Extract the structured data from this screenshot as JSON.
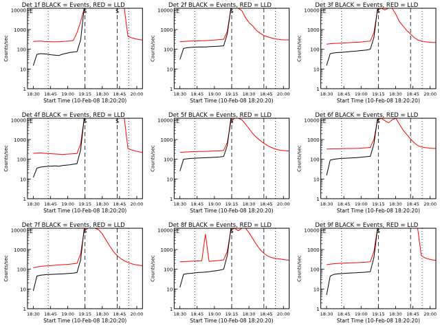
{
  "colors": {
    "events": "#000000",
    "lld": "#ff0000",
    "axis": "#000000"
  },
  "chart_data": [
    {
      "type": "line",
      "title": "Det 1f BLACK = Events, RED = LLD",
      "xlabel": "Start Time (10-Feb-08 18:20:20)",
      "ylabel": "Counts/sec",
      "yscale": "log",
      "ylim": [
        1,
        12000
      ],
      "yticks": [
        "1",
        "10",
        "100",
        "1000",
        "10000"
      ],
      "xticks": [
        "18:30",
        "18:45",
        "19:00",
        "19:15",
        "18:30",
        "18:45",
        "20:00"
      ],
      "annotations": [
        "E",
        "S",
        "S"
      ],
      "series": [
        {
          "values": [
            250,
            255,
            260,
            250,
            245,
            240,
            238,
            240,
            250,
            255,
            262,
            280,
            700,
            2500,
            12000,
            12000,
            12000,
            12000,
            12000,
            12000,
            12000,
            12000,
            12000,
            12000,
            12000,
            12000,
            450,
            380,
            340,
            310,
            290
          ]
        },
        {
          "values": [
            15,
            55,
            60,
            58,
            56,
            52,
            50,
            48,
            56,
            62,
            68,
            72,
            75,
            300,
            12000,
            12000,
            12000,
            12000,
            12000,
            12000,
            12000,
            12000,
            12000,
            12000,
            12000,
            12000,
            12000,
            12000,
            12000,
            12000,
            12000
          ]
        }
      ]
    },
    {
      "type": "line",
      "title": "Det 2f BLACK = Events, RED = LLD",
      "xlabel": "Start Time (10-Feb-08 18:20:20)",
      "ylabel": "Counts/sec",
      "yscale": "log",
      "ylim": [
        1,
        12000
      ],
      "yticks": [
        "1",
        "10",
        "100",
        "1000",
        "10000"
      ],
      "xticks": [
        "18:30",
        "18:45",
        "19:00",
        "19:15",
        "18:30",
        "18:45",
        "20:00"
      ],
      "annotations": [
        "E",
        "S"
      ],
      "series": [
        {
          "values": [
            240,
            250,
            255,
            260,
            262,
            265,
            270,
            275,
            280,
            290,
            300,
            310,
            320,
            800,
            12000,
            12000,
            12000,
            9000,
            4000,
            2200,
            1500,
            900,
            650,
            500,
            430,
            380,
            340,
            320,
            300,
            300,
            300
          ]
        },
        {
          "values": [
            30,
            110,
            120,
            125,
            128,
            130,
            132,
            130,
            135,
            138,
            140,
            145,
            150,
            600,
            12000,
            12000,
            12000,
            12000,
            12000,
            12000,
            12000,
            12000,
            12000,
            12000,
            12000,
            12000,
            12000,
            12000,
            12000,
            12000,
            12000
          ]
        }
      ]
    },
    {
      "type": "line",
      "title": "Det 3f BLACK = Events, RED = LLD",
      "xlabel": "Start Time (10-Feb-08 18:20:20)",
      "ylabel": "Counts/sec",
      "yscale": "log",
      "ylim": [
        1,
        12000
      ],
      "yticks": [
        "1",
        "10",
        "100",
        "1000",
        "10000"
      ],
      "xticks": [
        "18:30",
        "18:45",
        "19:00",
        "19:15",
        "18:30",
        "18:45",
        "20:00"
      ],
      "annotations": [
        "E",
        "S"
      ],
      "series": [
        {
          "values": [
            180,
            190,
            195,
            200,
            205,
            210,
            215,
            220,
            225,
            230,
            240,
            250,
            260,
            700,
            10000,
            12000,
            10000,
            12000,
            12000,
            6000,
            2500,
            1500,
            900,
            600,
            400,
            300,
            260,
            240,
            230,
            220,
            220
          ]
        },
        {
          "values": [
            15,
            60,
            65,
            68,
            70,
            72,
            75,
            78,
            80,
            84,
            88,
            92,
            100,
            400,
            12000,
            12000,
            12000,
            12000,
            12000,
            12000,
            12000,
            12000,
            12000,
            12000,
            12000,
            12000,
            12000,
            12000,
            12000,
            12000,
            12000
          ]
        }
      ]
    },
    {
      "type": "line",
      "title": "Det 4f BLACK = Events, RED = LLD",
      "xlabel": "Start Time (10-Feb-08 18:20:20)",
      "ylabel": "Counts/sec",
      "yscale": "log",
      "ylim": [
        1,
        12000
      ],
      "yticks": [
        "1",
        "10",
        "100",
        "1000",
        "10000"
      ],
      "xticks": [
        "18:30",
        "18:45",
        "19:00",
        "19:15",
        "18:30",
        "18:45",
        "20:00"
      ],
      "annotations": [
        "E",
        "S",
        "S"
      ],
      "series": [
        {
          "values": [
            200,
            205,
            210,
            200,
            195,
            190,
            185,
            180,
            175,
            180,
            185,
            190,
            195,
            600,
            12000,
            12000,
            12000,
            12000,
            12000,
            12000,
            12000,
            12000,
            12000,
            12000,
            12000,
            12000,
            350,
            300,
            260,
            240,
            220
          ]
        },
        {
          "values": [
            12,
            35,
            40,
            42,
            44,
            45,
            46,
            44,
            48,
            50,
            52,
            56,
            60,
            300,
            12000,
            12000,
            12000,
            12000,
            12000,
            12000,
            12000,
            12000,
            12000,
            12000,
            12000,
            12000,
            12000,
            12000,
            12000,
            12000,
            12000
          ]
        }
      ]
    },
    {
      "type": "line",
      "title": "Det 5f BLACK = Events, RED = LLD",
      "xlabel": "Start Time (10-Feb-08 18:20:20)",
      "ylabel": "Counts/sec",
      "yscale": "log",
      "ylim": [
        1,
        12000
      ],
      "yticks": [
        "1",
        "10",
        "100",
        "1000",
        "10000"
      ],
      "xticks": [
        "18:30",
        "18:45",
        "19:00",
        "19:15",
        "18:30",
        "18:45",
        "20:00"
      ],
      "annotations": [
        "E",
        "S"
      ],
      "series": [
        {
          "values": [
            220,
            230,
            235,
            240,
            245,
            248,
            250,
            252,
            255,
            258,
            262,
            268,
            280,
            700,
            8000,
            12000,
            12000,
            10000,
            6000,
            3500,
            2000,
            1300,
            900,
            650,
            500,
            400,
            340,
            300,
            280,
            270,
            260
          ]
        },
        {
          "values": [
            25,
            100,
            105,
            110,
            112,
            115,
            118,
            120,
            122,
            125,
            128,
            132,
            138,
            500,
            12000,
            12000,
            12000,
            12000,
            12000,
            12000,
            12000,
            12000,
            12000,
            12000,
            12000,
            12000,
            12000,
            12000,
            12000,
            12000,
            12000
          ]
        }
      ]
    },
    {
      "type": "line",
      "title": "Det 6f BLACK = Events, RED = LLD",
      "xlabel": "Start Time (10-Feb-08 18:20:20)",
      "ylabel": "Counts/sec",
      "yscale": "log",
      "ylim": [
        1,
        12000
      ],
      "yticks": [
        "1",
        "10",
        "100",
        "1000",
        "10000"
      ],
      "xticks": [
        "18:30",
        "18:45",
        "19:00",
        "19:15",
        "18:30",
        "18:45",
        "20:00"
      ],
      "annotations": [
        "E",
        "S"
      ],
      "series": [
        {
          "values": [
            330,
            335,
            340,
            340,
            345,
            348,
            350,
            352,
            355,
            360,
            370,
            380,
            400,
            1000,
            10000,
            12000,
            9000,
            7000,
            10000,
            12000,
            6000,
            3000,
            1800,
            1100,
            700,
            500,
            420,
            390,
            370,
            360,
            350
          ]
        },
        {
          "values": [
            15,
            90,
            100,
            105,
            110,
            112,
            115,
            118,
            120,
            125,
            130,
            135,
            140,
            600,
            12000,
            12000,
            12000,
            12000,
            12000,
            12000,
            12000,
            12000,
            12000,
            12000,
            12000,
            12000,
            12000,
            12000,
            12000,
            12000,
            12000
          ]
        }
      ]
    },
    {
      "type": "line",
      "title": "Det 7f BLACK = Events, RED = LLD",
      "xlabel": "Start Time (10-Feb-08 18:20:20)",
      "ylabel": "Counts/sec",
      "yscale": "log",
      "ylim": [
        1,
        12000
      ],
      "yticks": [
        "1",
        "10",
        "100",
        "1000",
        "10000"
      ],
      "xticks": [
        "18:30",
        "18:45",
        "19:00",
        "19:15",
        "18:30",
        "18:45",
        "20:00"
      ],
      "annotations": [
        "E",
        "S"
      ],
      "series": [
        {
          "values": [
            120,
            130,
            140,
            145,
            150,
            155,
            160,
            165,
            170,
            175,
            180,
            190,
            200,
            600,
            9000,
            12000,
            12000,
            12000,
            10000,
            6000,
            3000,
            1500,
            800,
            500,
            350,
            270,
            220,
            190,
            170,
            160,
            150
          ]
        },
        {
          "values": [
            8,
            45,
            50,
            52,
            54,
            55,
            56,
            57,
            58,
            60,
            62,
            64,
            68,
            300,
            12000,
            12000,
            12000,
            12000,
            12000,
            12000,
            12000,
            12000,
            12000,
            12000,
            12000,
            12000,
            12000,
            12000,
            12000,
            12000,
            12000
          ]
        }
      ]
    },
    {
      "type": "line",
      "title": "Det 8f BLACK = Events, RED = LLD",
      "xlabel": "Start Time (10-Feb-08 18:20:20)",
      "ylabel": "Counts/sec",
      "yscale": "log",
      "ylim": [
        1,
        12000
      ],
      "yticks": [
        "1",
        "10",
        "100",
        "1000",
        "10000"
      ],
      "xticks": [
        "18:30",
        "18:45",
        "19:00",
        "19:15",
        "18:30",
        "18:45",
        "20:00"
      ],
      "annotations": [
        "E",
        "S"
      ],
      "series": [
        {
          "values": [
            240,
            245,
            250,
            255,
            260,
            265,
            270,
            6000,
            250,
            260,
            270,
            280,
            300,
            800,
            10000,
            12000,
            9000,
            12000,
            12000,
            7000,
            3500,
            1800,
            1000,
            650,
            480,
            400,
            360,
            340,
            320,
            300,
            290
          ]
        },
        {
          "values": [
            12,
            55,
            60,
            62,
            65,
            68,
            70,
            72,
            75,
            80,
            85,
            90,
            100,
            500,
            12000,
            12000,
            12000,
            12000,
            12000,
            12000,
            12000,
            12000,
            12000,
            12000,
            12000,
            12000,
            12000,
            12000,
            12000,
            12000,
            12000
          ]
        }
      ]
    },
    {
      "type": "line",
      "title": "Det 9f BLACK = Events, RED = LLD",
      "xlabel": "Start Time (10-Feb-08 18:20:20)",
      "ylabel": "Counts/sec",
      "yscale": "log",
      "ylim": [
        1,
        12000
      ],
      "yticks": [
        "1",
        "10",
        "100",
        "1000",
        "10000"
      ],
      "xticks": [
        "18:30",
        "18:45",
        "19:00",
        "19:15",
        "18:30",
        "18:45",
        "20:00"
      ],
      "annotations": [
        "E",
        "S"
      ],
      "series": [
        {
          "values": [
            170,
            180,
            190,
            195,
            200,
            205,
            210,
            212,
            215,
            220,
            225,
            230,
            240,
            800,
            12000,
            12000,
            12000,
            12000,
            12000,
            12000,
            12000,
            12000,
            12000,
            12000,
            12000,
            12000,
            500,
            380,
            330,
            300,
            280
          ]
        },
        {
          "values": [
            5,
            45,
            55,
            58,
            60,
            62,
            64,
            65,
            66,
            68,
            70,
            72,
            75,
            400,
            12000,
            12000,
            12000,
            12000,
            12000,
            12000,
            12000,
            12000,
            12000,
            12000,
            12000,
            12000,
            12000,
            12000,
            12000,
            12000,
            12000
          ]
        }
      ]
    }
  ]
}
